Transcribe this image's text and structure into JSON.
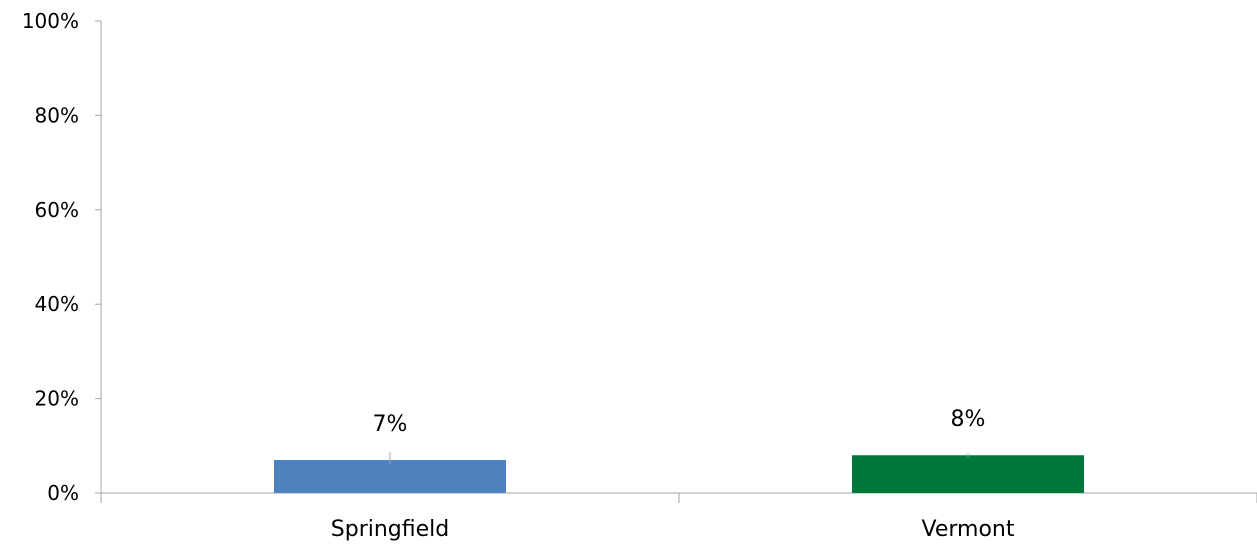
{
  "chart_data": {
    "type": "bar",
    "categories": [
      "Springfield",
      "Vermont"
    ],
    "values": [
      7,
      8
    ],
    "data_labels": [
      "7%",
      "8%"
    ],
    "colors": [
      "#4f81bd",
      "#00783a"
    ],
    "error_bars": [
      {
        "low": 6.2,
        "high": 8.6
      },
      {
        "low": 7.6,
        "high": 8.4
      }
    ],
    "ylim": [
      0,
      100
    ],
    "yticks": [
      0,
      20,
      40,
      60,
      80,
      100
    ],
    "ytick_labels": [
      "0%",
      "20%",
      "40%",
      "60%",
      "80%",
      "100%"
    ],
    "grid": false,
    "legend": "none",
    "axis_color": "#a6a6a6"
  }
}
